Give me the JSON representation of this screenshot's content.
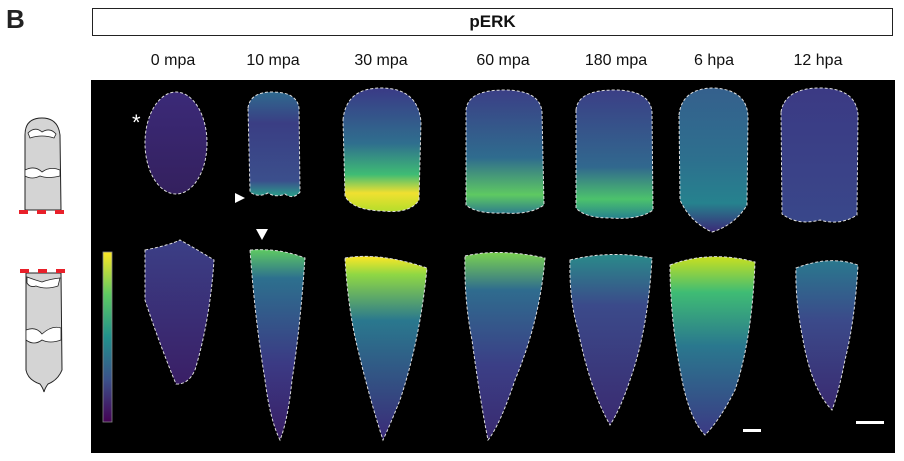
{
  "panel_label": "B",
  "stain_title": "pERK",
  "timepoints": [
    "0 mpa",
    "10 mpa",
    "30 mpa",
    "60 mpa",
    "180 mpa",
    "6 hpa",
    "12 hpa"
  ],
  "annotations": {
    "asterisk": "*"
  },
  "colors": {
    "background": "#000000",
    "cut_marker": "#e8202a",
    "schematic_fill": "#d4d4d4",
    "colormap_low": "#440154",
    "colormap_mid": "#21918c",
    "colormap_high": "#fde725"
  }
}
